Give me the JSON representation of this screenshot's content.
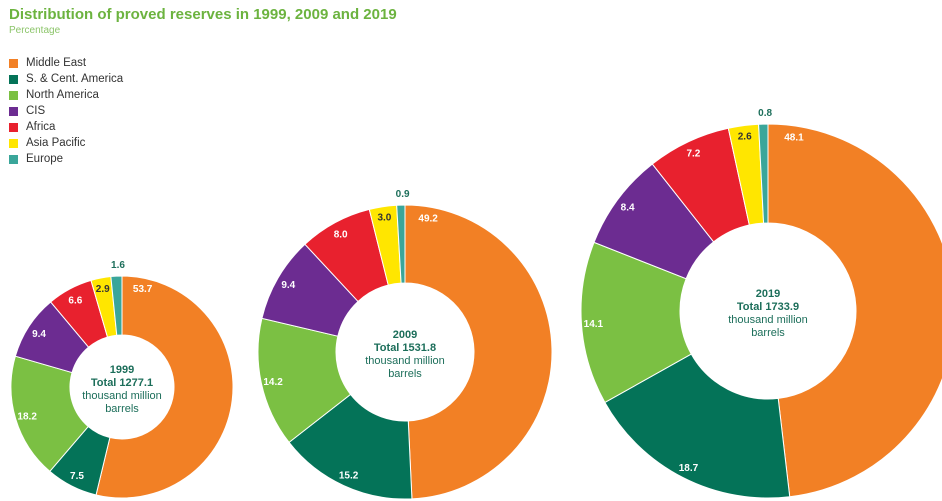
{
  "chart_data": {
    "type": "pie",
    "title": "Distribution of proved reserves in 1999, 2009 and 2019",
    "subtitle": "Percentage",
    "legend_placement": "top-left",
    "series": [
      {
        "name": "Middle East",
        "color": "#f28025"
      },
      {
        "name": "S. & Cent. America",
        "color": "#047358"
      },
      {
        "name": "North America",
        "color": "#7bc043"
      },
      {
        "name": "CIS",
        "color": "#6c2c91"
      },
      {
        "name": "Africa",
        "color": "#e8212e"
      },
      {
        "name": "Asia Pacific",
        "color": "#ffe600"
      },
      {
        "name": "Europe",
        "color": "#3aa69a"
      }
    ],
    "donuts": [
      {
        "year": "1999",
        "total_label": "Total 1277.1",
        "unit_line1": "thousand million",
        "unit_line2": "barrels",
        "total": 1277.1,
        "values": [
          53.7,
          7.5,
          18.2,
          9.4,
          6.6,
          2.9,
          1.6
        ],
        "labels": [
          "53.7",
          "7.5",
          "18.2",
          "9.4",
          "6.6",
          "2.9",
          "1.6"
        ]
      },
      {
        "year": "2009",
        "total_label": "Total 1531.8",
        "unit_line1": "thousand million",
        "unit_line2": "barrels",
        "total": 1531.8,
        "values": [
          49.2,
          15.2,
          14.2,
          9.4,
          8.0,
          3.0,
          0.9
        ],
        "labels": [
          "49.2",
          "15.2",
          "14.2",
          "9.4",
          "8.0",
          "3.0",
          "0.9"
        ]
      },
      {
        "year": "2019",
        "total_label": "Total 1733.9",
        "unit_line1": "thousand million",
        "unit_line2": "barrels",
        "total": 1733.9,
        "values": [
          48.1,
          18.7,
          14.1,
          8.4,
          7.2,
          2.6,
          0.8
        ],
        "labels": [
          "48.1",
          "18.7",
          "14.1",
          "8.4",
          "7.2",
          "2.6",
          "0.8"
        ]
      }
    ]
  }
}
